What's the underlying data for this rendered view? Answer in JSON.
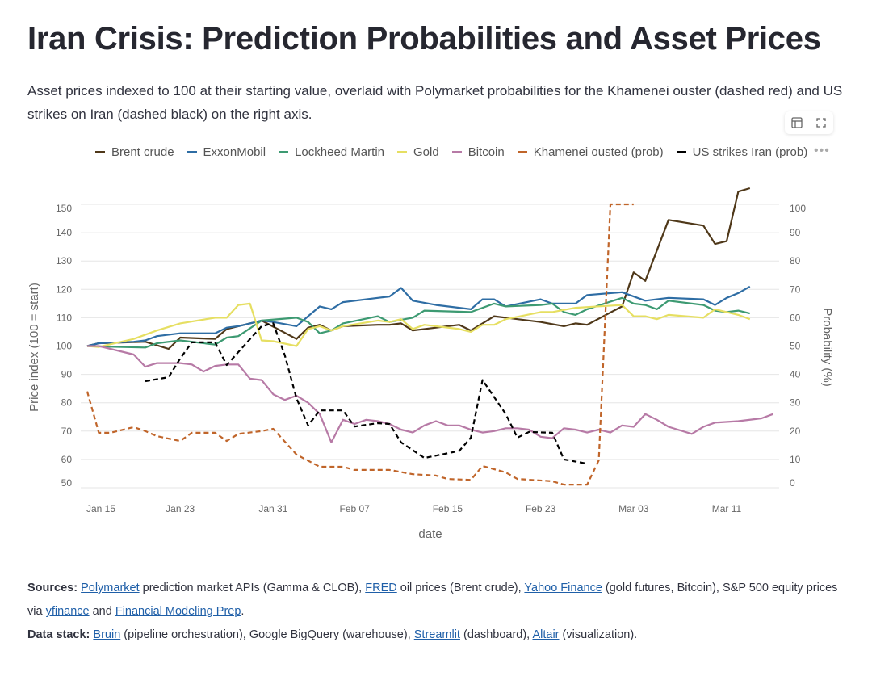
{
  "header": {
    "title": "Iran Crisis: Prediction Probabilities and Asset Prices",
    "subtitle": "Asset prices indexed to 100 at their starting value, overlaid with Polymarket probabilities for the Khamenei ouster (dashed red) and US strikes on Iran (dashed black) on the right axis."
  },
  "toolbar": {
    "icons": [
      "table-icon",
      "fullscreen-icon"
    ],
    "more_label": "•••"
  },
  "chart_data": {
    "type": "line",
    "title": "",
    "xlabel": "date",
    "ylabel": "Price index (100 = start)",
    "y2label": "Probability (%)",
    "ylim": [
      50,
      150
    ],
    "y2lim": [
      0,
      100
    ],
    "x_ticks": [
      "Jan 15",
      "Jan 23",
      "Jan 31",
      "Feb 07",
      "Feb 15",
      "Feb 23",
      "Mar 03",
      "Mar 11"
    ],
    "y_ticks": [
      50,
      60,
      70,
      80,
      90,
      100,
      110,
      120,
      130,
      140,
      150
    ],
    "y2_ticks": [
      0,
      10,
      20,
      30,
      40,
      50,
      60,
      70,
      80,
      90,
      100
    ],
    "grid": true,
    "legend": "top",
    "series": [
      {
        "name": "Brent crude",
        "color": "#4f3819",
        "dashed": false,
        "axis": "left",
        "points": [
          [
            "01-15",
            100
          ],
          [
            "01-16",
            101
          ],
          [
            "01-20",
            101.5
          ],
          [
            "01-22",
            99
          ],
          [
            "01-23",
            103
          ],
          [
            "01-26",
            102.5
          ],
          [
            "01-27",
            106
          ],
          [
            "01-30",
            109
          ],
          [
            "02-02",
            102.5
          ],
          [
            "02-03",
            106.5
          ],
          [
            "02-04",
            107.5
          ],
          [
            "02-05",
            105.5
          ],
          [
            "02-06",
            107
          ],
          [
            "02-09",
            107.5
          ],
          [
            "02-10",
            107.5
          ],
          [
            "02-11",
            108
          ],
          [
            "02-12",
            105.5
          ],
          [
            "02-14",
            106.5
          ],
          [
            "02-16",
            107.5
          ],
          [
            "02-17",
            105.5
          ],
          [
            "02-18",
            108
          ],
          [
            "02-19",
            110.5
          ],
          [
            "02-23",
            108.5
          ],
          [
            "02-25",
            107
          ],
          [
            "02-26",
            108
          ],
          [
            "02-27",
            107.5
          ],
          [
            "03-02",
            114
          ],
          [
            "03-03",
            126
          ],
          [
            "03-04",
            123
          ],
          [
            "03-06",
            144.5
          ],
          [
            "03-09",
            142.5
          ],
          [
            "03-10",
            136
          ],
          [
            "03-11",
            137
          ],
          [
            "03-12",
            154.5
          ],
          [
            "03-13",
            155.7
          ]
        ]
      },
      {
        "name": "ExxonMobil",
        "color": "#2e6da4",
        "dashed": false,
        "axis": "left",
        "points": [
          [
            "01-15",
            100
          ],
          [
            "01-16",
            101
          ],
          [
            "01-19",
            101.5
          ],
          [
            "01-20",
            102
          ],
          [
            "01-21",
            103.5
          ],
          [
            "01-23",
            104.5
          ],
          [
            "01-26",
            104.5
          ],
          [
            "01-27",
            106.5
          ],
          [
            "01-28",
            107
          ],
          [
            "01-30",
            109
          ],
          [
            "01-31",
            108.5
          ],
          [
            "02-02",
            107
          ],
          [
            "02-03",
            110.5
          ],
          [
            "02-04",
            114
          ],
          [
            "02-05",
            113
          ],
          [
            "02-06",
            115.5
          ],
          [
            "02-09",
            117
          ],
          [
            "02-10",
            117.5
          ],
          [
            "02-11",
            120.5
          ],
          [
            "02-12",
            116
          ],
          [
            "02-14",
            114.5
          ],
          [
            "02-17",
            113
          ],
          [
            "02-18",
            116.5
          ],
          [
            "02-19",
            116.5
          ],
          [
            "02-20",
            114
          ],
          [
            "02-23",
            116.5
          ],
          [
            "02-24",
            115
          ],
          [
            "02-26",
            115
          ],
          [
            "02-27",
            118
          ],
          [
            "03-02",
            119
          ],
          [
            "03-04",
            116
          ],
          [
            "03-06",
            117
          ],
          [
            "03-09",
            116.5
          ],
          [
            "03-10",
            114.5
          ],
          [
            "03-11",
            117
          ],
          [
            "03-12",
            118.7
          ],
          [
            "03-13",
            121
          ]
        ]
      },
      {
        "name": "Lockheed Martin",
        "color": "#3d9a72",
        "dashed": false,
        "axis": "left",
        "points": [
          [
            "01-15",
            100
          ],
          [
            "01-18",
            99.7
          ],
          [
            "01-20",
            99.5
          ],
          [
            "01-21",
            101
          ],
          [
            "01-23",
            102
          ],
          [
            "01-26",
            100.5
          ],
          [
            "01-27",
            103
          ],
          [
            "01-28",
            103.5
          ],
          [
            "01-30",
            109
          ],
          [
            "02-02",
            110
          ],
          [
            "02-03",
            108.5
          ],
          [
            "02-04",
            104.5
          ],
          [
            "02-05",
            105.5
          ],
          [
            "02-06",
            108
          ],
          [
            "02-09",
            110.5
          ],
          [
            "02-10",
            108.5
          ],
          [
            "02-12",
            110
          ],
          [
            "02-13",
            112.5
          ],
          [
            "02-17",
            112
          ],
          [
            "02-19",
            115
          ],
          [
            "02-20",
            114
          ],
          [
            "02-23",
            114.5
          ],
          [
            "02-24",
            115
          ],
          [
            "02-25",
            112
          ],
          [
            "02-26",
            111
          ],
          [
            "02-27",
            113
          ],
          [
            "03-02",
            117
          ],
          [
            "03-03",
            115
          ],
          [
            "03-04",
            114.5
          ],
          [
            "03-05",
            113
          ],
          [
            "03-06",
            116
          ],
          [
            "03-09",
            114.5
          ],
          [
            "03-10",
            112.5
          ],
          [
            "03-11",
            112
          ],
          [
            "03-12",
            112.5
          ],
          [
            "03-13",
            111.5
          ]
        ]
      },
      {
        "name": "Gold",
        "color": "#e6df62",
        "dashed": false,
        "axis": "left",
        "points": [
          [
            "01-15",
            100
          ],
          [
            "01-16",
            99.7
          ],
          [
            "01-19",
            102.5
          ],
          [
            "01-21",
            105.5
          ],
          [
            "01-23",
            108
          ],
          [
            "01-26",
            110
          ],
          [
            "01-27",
            110
          ],
          [
            "01-28",
            114.5
          ],
          [
            "01-29",
            115
          ],
          [
            "01-30",
            102
          ],
          [
            "01-31",
            101.7
          ],
          [
            "02-02",
            100
          ],
          [
            "02-03",
            106
          ],
          [
            "02-04",
            107
          ],
          [
            "02-05",
            105.5
          ],
          [
            "02-06",
            107
          ],
          [
            "02-09",
            109
          ],
          [
            "02-10",
            108.5
          ],
          [
            "02-11",
            109.5
          ],
          [
            "02-12",
            106
          ],
          [
            "02-13",
            107.5
          ],
          [
            "02-16",
            106
          ],
          [
            "02-17",
            105
          ],
          [
            "02-18",
            107.5
          ],
          [
            "02-19",
            107.5
          ],
          [
            "02-20",
            109.5
          ],
          [
            "02-23",
            112
          ],
          [
            "02-24",
            112
          ],
          [
            "02-26",
            113.5
          ],
          [
            "03-02",
            114.5
          ],
          [
            "03-03",
            110.5
          ],
          [
            "03-04",
            110.5
          ],
          [
            "03-05",
            109.5
          ],
          [
            "03-06",
            111
          ],
          [
            "03-09",
            110
          ],
          [
            "03-10",
            113
          ],
          [
            "03-12",
            111
          ],
          [
            "03-13",
            109.5
          ]
        ]
      },
      {
        "name": "Bitcoin",
        "color": "#b77aa6",
        "dashed": false,
        "axis": "left",
        "points": [
          [
            "01-15",
            100
          ],
          [
            "01-16",
            100
          ],
          [
            "01-17",
            99
          ],
          [
            "01-19",
            97
          ],
          [
            "01-20",
            92.7
          ],
          [
            "01-21",
            94
          ],
          [
            "01-23",
            94
          ],
          [
            "01-24",
            93.5
          ],
          [
            "01-25",
            91
          ],
          [
            "01-26",
            93
          ],
          [
            "01-27",
            93.5
          ],
          [
            "01-28",
            93.5
          ],
          [
            "01-29",
            88.5
          ],
          [
            "01-30",
            88
          ],
          [
            "01-31",
            83
          ],
          [
            "02-01",
            81
          ],
          [
            "02-02",
            82.5
          ],
          [
            "02-03",
            80
          ],
          [
            "02-04",
            76
          ],
          [
            "02-05",
            66
          ],
          [
            "02-06",
            74
          ],
          [
            "02-07",
            72.5
          ],
          [
            "02-08",
            74
          ],
          [
            "02-09",
            73.5
          ],
          [
            "02-10",
            72.5
          ],
          [
            "02-11",
            70.5
          ],
          [
            "02-12",
            69.5
          ],
          [
            "02-13",
            72
          ],
          [
            "02-14",
            73.5
          ],
          [
            "02-15",
            72
          ],
          [
            "02-16",
            72
          ],
          [
            "02-17",
            70.5
          ],
          [
            "02-18",
            69.5
          ],
          [
            "02-19",
            70
          ],
          [
            "02-20",
            71
          ],
          [
            "02-21",
            71
          ],
          [
            "02-22",
            70.5
          ],
          [
            "02-23",
            68
          ],
          [
            "02-24",
            67.5
          ],
          [
            "02-25",
            71
          ],
          [
            "02-26",
            70.5
          ],
          [
            "02-27",
            69.5
          ],
          [
            "02-28",
            70.5
          ],
          [
            "03-01",
            69.5
          ],
          [
            "03-02",
            72
          ],
          [
            "03-03",
            71.5
          ],
          [
            "03-04",
            76
          ],
          [
            "03-05",
            74
          ],
          [
            "03-06",
            71.5
          ],
          [
            "03-08",
            69
          ],
          [
            "03-09",
            71.5
          ],
          [
            "03-10",
            73
          ],
          [
            "03-12",
            73.5
          ],
          [
            "03-14",
            74.5
          ],
          [
            "03-15",
            76
          ]
        ]
      },
      {
        "name": "Khamenei ousted (prob)",
        "color": "#c0652a",
        "dashed": true,
        "axis": "right",
        "points": [
          [
            "01-15",
            34
          ],
          [
            "01-16",
            19.4
          ],
          [
            "01-17",
            19.4
          ],
          [
            "01-19",
            21.4
          ],
          [
            "01-20",
            20
          ],
          [
            "01-21",
            18.2
          ],
          [
            "01-23",
            16.5
          ],
          [
            "01-24",
            19.4
          ],
          [
            "01-26",
            19.4
          ],
          [
            "01-27",
            16.5
          ],
          [
            "01-28",
            19
          ],
          [
            "01-30",
            20
          ],
          [
            "01-31",
            20.8
          ],
          [
            "02-02",
            11.7
          ],
          [
            "02-04",
            7.4
          ],
          [
            "02-06",
            7.4
          ],
          [
            "02-07",
            6.3
          ],
          [
            "02-10",
            6.3
          ],
          [
            "02-12",
            4.8
          ],
          [
            "02-14",
            4.3
          ],
          [
            "02-15",
            3.1
          ],
          [
            "02-17",
            2.8
          ],
          [
            "02-18",
            7.7
          ],
          [
            "02-20",
            5.4
          ],
          [
            "02-21",
            3.1
          ],
          [
            "02-24",
            2.3
          ],
          [
            "02-25",
            1.1
          ],
          [
            "02-27",
            1.1
          ],
          [
            "02-28",
            9.7
          ],
          [
            "03-01",
            100
          ],
          [
            "03-03",
            100
          ]
        ]
      },
      {
        "name": "US strikes Iran (prob)",
        "color": "#000000",
        "dashed": true,
        "axis": "right",
        "points": [
          [
            "01-20",
            37.6
          ],
          [
            "01-22",
            39
          ],
          [
            "01-23",
            45.6
          ],
          [
            "01-24",
            51.3
          ],
          [
            "01-26",
            51.3
          ],
          [
            "01-27",
            43.3
          ],
          [
            "01-30",
            57
          ],
          [
            "01-31",
            58
          ],
          [
            "02-01",
            46.7
          ],
          [
            "02-02",
            31.6
          ],
          [
            "02-03",
            22
          ],
          [
            "02-04",
            27.3
          ],
          [
            "02-06",
            27.3
          ],
          [
            "02-07",
            21.6
          ],
          [
            "02-09",
            22.8
          ],
          [
            "02-10",
            22.5
          ],
          [
            "02-11",
            16
          ],
          [
            "02-13",
            10.5
          ],
          [
            "02-16",
            13
          ],
          [
            "02-17",
            17.7
          ],
          [
            "02-18",
            38
          ],
          [
            "02-20",
            26
          ],
          [
            "02-21",
            17.7
          ],
          [
            "02-22",
            19.7
          ],
          [
            "02-24",
            19.4
          ],
          [
            "02-25",
            10
          ],
          [
            "02-27",
            8.5
          ]
        ]
      }
    ]
  },
  "footer": {
    "sources_label": "Sources:",
    "sources": [
      {
        "text": "Polymarket",
        "link": true
      },
      {
        "text": " prediction market APIs (Gamma & CLOB), ",
        "link": false
      },
      {
        "text": "FRED",
        "link": true
      },
      {
        "text": " oil prices (Brent crude), ",
        "link": false
      },
      {
        "text": "Yahoo Finance",
        "link": true
      },
      {
        "text": " (gold futures, Bitcoin), S&P 500 equity prices via ",
        "link": false
      },
      {
        "text": "yfinance",
        "link": true
      },
      {
        "text": " and ",
        "link": false
      },
      {
        "text": "Financial Modeling Prep",
        "link": true
      },
      {
        "text": ".",
        "link": false
      }
    ],
    "stack_label": "Data stack:",
    "stack": [
      {
        "text": "Bruin",
        "link": true
      },
      {
        "text": " (pipeline orchestration), Google BigQuery (warehouse), ",
        "link": false
      },
      {
        "text": "Streamlit",
        "link": true
      },
      {
        "text": " (dashboard), ",
        "link": false
      },
      {
        "text": "Altair",
        "link": true
      },
      {
        "text": " (visualization).",
        "link": false
      }
    ]
  }
}
